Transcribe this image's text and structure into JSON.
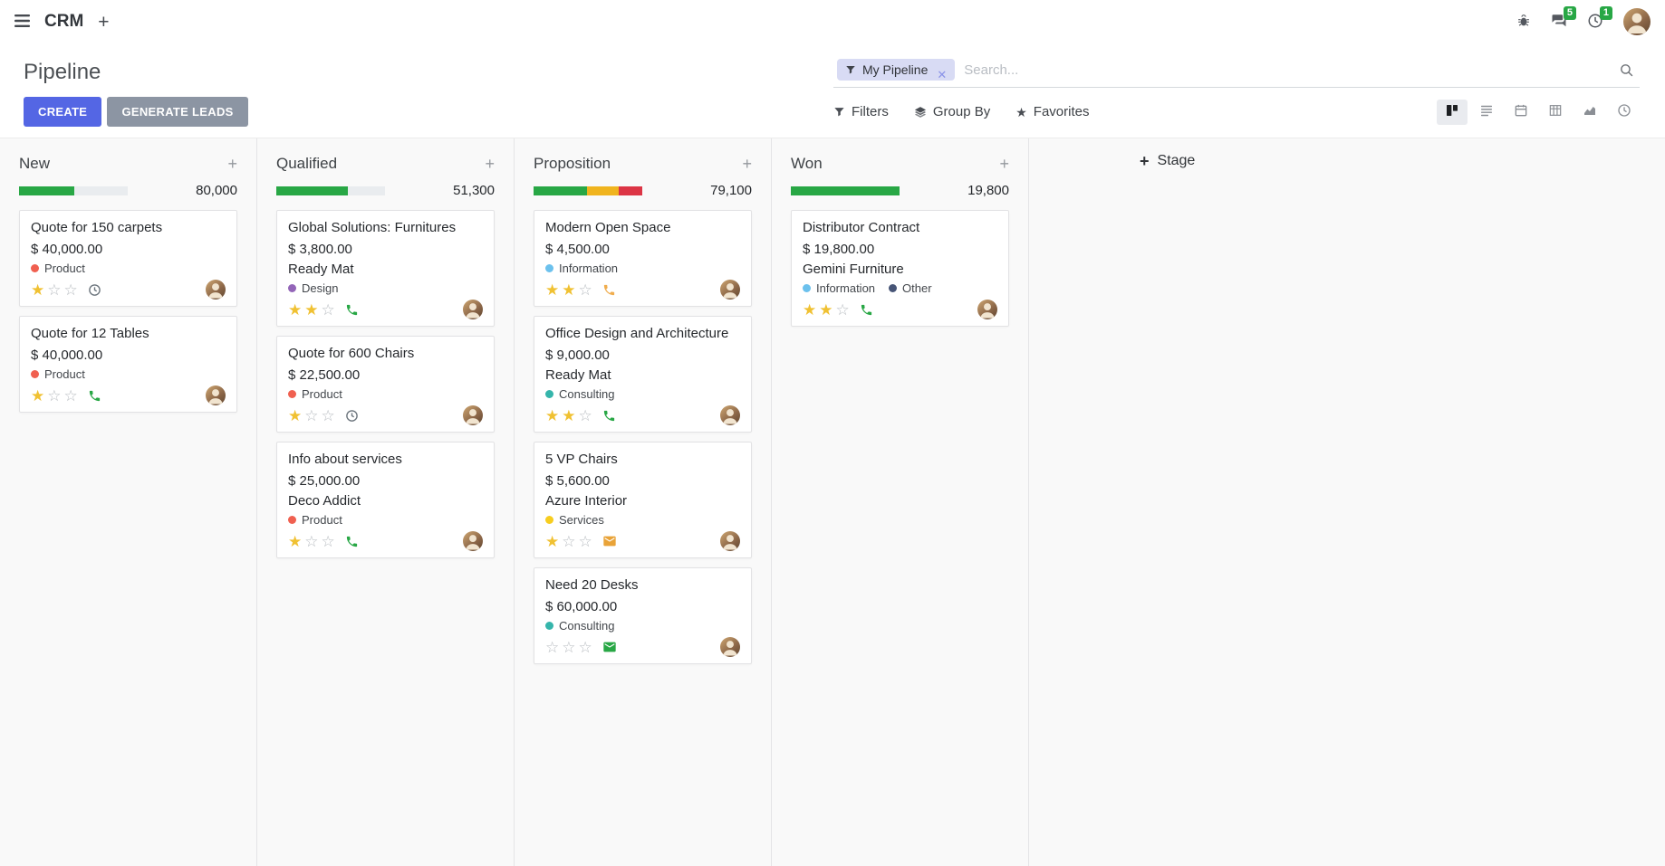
{
  "colors": {
    "primary": "#5466e4",
    "secondary": "#8c95a3",
    "success": "#28a745",
    "warning": "#f0b41e",
    "danger": "#dc3545",
    "track": "#e9ecef",
    "star": "#f0c132",
    "facet_bg": "#d8dbf4"
  },
  "navbar": {
    "app_name": "CRM",
    "messages_badge": "5",
    "activities_badge": "1"
  },
  "control_panel": {
    "title": "Pipeline",
    "create_label": "CREATE",
    "generate_leads_label": "GENERATE LEADS",
    "search": {
      "facet_label": "My Pipeline",
      "placeholder": "Search..."
    },
    "menus": {
      "filters": "Filters",
      "group_by": "Group By",
      "favorites": "Favorites"
    },
    "view_switcher": {
      "active": "kanban",
      "views": [
        "kanban",
        "list",
        "calendar",
        "pivot",
        "graph",
        "activity"
      ]
    }
  },
  "board": {
    "add_stage_label": "Stage",
    "columns": [
      {
        "title": "New",
        "total": "80,000",
        "progress": [
          {
            "color": "success",
            "pct": 51
          }
        ],
        "cards": [
          {
            "title": "Quote for 150 carpets",
            "amount": "$ 40,000.00",
            "partner": null,
            "tags": [
              {
                "label": "Product",
                "color": "#f06050"
              }
            ],
            "stars": 1,
            "activity": {
              "icon": "clock",
              "color": "#6c757d"
            }
          },
          {
            "title": "Quote for 12 Tables",
            "amount": "$ 40,000.00",
            "partner": null,
            "tags": [
              {
                "label": "Product",
                "color": "#f06050"
              }
            ],
            "stars": 1,
            "activity": {
              "icon": "phone",
              "color": "#28a745"
            }
          }
        ]
      },
      {
        "title": "Qualified",
        "total": "51,300",
        "progress": [
          {
            "color": "success",
            "pct": 66
          }
        ],
        "cards": [
          {
            "title": "Global Solutions: Furnitures",
            "amount": "$ 3,800.00",
            "partner": "Ready Mat",
            "tags": [
              {
                "label": "Design",
                "color": "#9365b8"
              }
            ],
            "stars": 2,
            "activity": {
              "icon": "phone",
              "color": "#28a745"
            }
          },
          {
            "title": "Quote for 600 Chairs",
            "amount": "$ 22,500.00",
            "partner": null,
            "tags": [
              {
                "label": "Product",
                "color": "#f06050"
              }
            ],
            "stars": 1,
            "activity": {
              "icon": "clock",
              "color": "#6c757d"
            }
          },
          {
            "title": "Info about services",
            "amount": "$ 25,000.00",
            "partner": "Deco Addict",
            "tags": [
              {
                "label": "Product",
                "color": "#f06050"
              }
            ],
            "stars": 1,
            "activity": {
              "icon": "phone",
              "color": "#28a745"
            }
          }
        ]
      },
      {
        "title": "Proposition",
        "total": "79,100",
        "progress": [
          {
            "color": "success",
            "pct": 49
          },
          {
            "color": "warning",
            "pct": 29
          },
          {
            "color": "danger",
            "pct": 22
          }
        ],
        "cards": [
          {
            "title": "Modern Open Space",
            "amount": "$ 4,500.00",
            "partner": null,
            "tags": [
              {
                "label": "Information",
                "color": "#6cc1ed"
              }
            ],
            "stars": 2,
            "activity": {
              "icon": "phone",
              "color": "#f0ad4e"
            }
          },
          {
            "title": "Office Design and Architecture",
            "amount": "$ 9,000.00",
            "partner": "Ready Mat",
            "tags": [
              {
                "label": "Consulting",
                "color": "#35b5ab"
              }
            ],
            "stars": 2,
            "activity": {
              "icon": "phone",
              "color": "#28a745"
            }
          },
          {
            "title": "5 VP Chairs",
            "amount": "$ 5,600.00",
            "partner": "Azure Interior",
            "tags": [
              {
                "label": "Services",
                "color": "#f7cd1f"
              }
            ],
            "stars": 1,
            "activity": {
              "icon": "envelope",
              "color": "#e9a338"
            }
          },
          {
            "title": "Need 20 Desks",
            "amount": "$ 60,000.00",
            "partner": null,
            "tags": [
              {
                "label": "Consulting",
                "color": "#35b5ab"
              }
            ],
            "stars": 0,
            "activity": {
              "icon": "envelope",
              "color": "#28a745"
            }
          }
        ]
      },
      {
        "title": "Won",
        "total": "19,800",
        "progress": [
          {
            "color": "success",
            "pct": 100
          }
        ],
        "cards": [
          {
            "title": "Distributor Contract",
            "amount": "$ 19,800.00",
            "partner": "Gemini Furniture",
            "tags": [
              {
                "label": "Information",
                "color": "#6cc1ed"
              },
              {
                "label": "Other",
                "color": "#475577"
              }
            ],
            "stars": 2,
            "activity": {
              "icon": "phone",
              "color": "#28a745"
            }
          }
        ]
      }
    ]
  }
}
